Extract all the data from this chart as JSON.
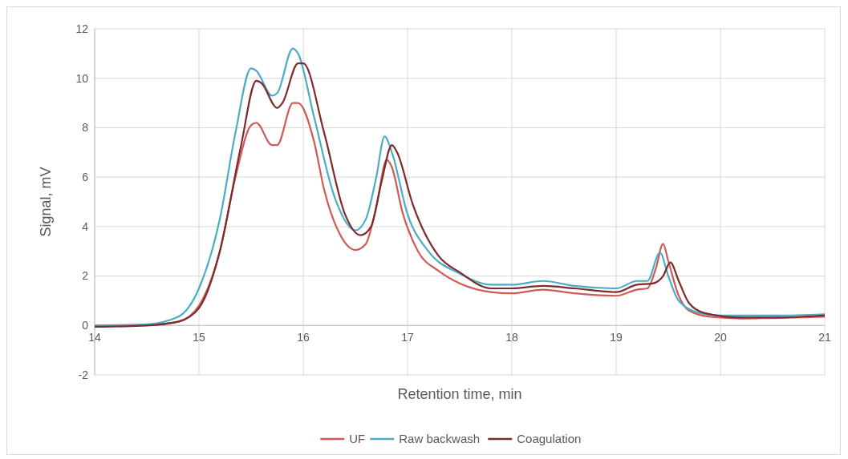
{
  "chart_data": {
    "type": "line",
    "xlabel": "Retention time, min",
    "ylabel": "Signal, mV",
    "xlim": [
      14,
      21
    ],
    "xticks": [
      14,
      15,
      16,
      17,
      18,
      19,
      20,
      21
    ],
    "ylim": [
      -2,
      12
    ],
    "yticks": [
      -2,
      0,
      2,
      4,
      6,
      8,
      10,
      12
    ],
    "grid": true,
    "legend": "bottom",
    "line_style": "solid",
    "series": [
      {
        "name": "UF",
        "color": "#d05a55",
        "x": [
          14,
          14.5,
          14.8,
          15,
          15.2,
          15.35,
          15.5,
          15.55,
          15.7,
          15.75,
          15.9,
          15.95,
          16.1,
          16.2,
          16.35,
          16.5,
          16.6,
          16.7,
          16.8,
          16.85,
          16.95,
          17.1,
          17.3,
          17.5,
          17.8,
          18,
          18.3,
          18.6,
          19,
          19.2,
          19.3,
          19.38,
          19.45,
          19.5,
          19.6,
          19.7,
          19.9,
          20.2,
          20.5,
          21
        ],
        "values": [
          0,
          0.02,
          0.15,
          0.8,
          3,
          6,
          8.1,
          8.2,
          7.3,
          7.3,
          9,
          9,
          7.5,
          5.5,
          3.7,
          3.05,
          3.3,
          4.8,
          6.7,
          6.4,
          4.6,
          3,
          2.2,
          1.7,
          1.35,
          1.3,
          1.45,
          1.3,
          1.2,
          1.45,
          1.5,
          2.3,
          3.3,
          2.6,
          1.2,
          0.6,
          0.35,
          0.28,
          0.3,
          0.35
        ]
      },
      {
        "name": "Raw backwash",
        "color": "#4bacc6",
        "x": [
          14,
          14.5,
          14.8,
          15,
          15.2,
          15.35,
          15.5,
          15.55,
          15.7,
          15.75,
          15.9,
          15.95,
          16.1,
          16.3,
          16.5,
          16.6,
          16.7,
          16.78,
          16.85,
          17,
          17.2,
          17.5,
          17.8,
          18,
          18.3,
          18.6,
          19,
          19.2,
          19.3,
          19.42,
          19.5,
          19.6,
          19.8,
          20,
          20.5,
          21
        ],
        "values": [
          0,
          0.05,
          0.35,
          1.5,
          4.3,
          7.8,
          10.4,
          10.3,
          9.3,
          9.4,
          11.2,
          11,
          8.5,
          5.2,
          3.85,
          4.3,
          6,
          7.65,
          7,
          4.5,
          3,
          2.1,
          1.65,
          1.65,
          1.8,
          1.6,
          1.5,
          1.8,
          1.8,
          2.95,
          2,
          1,
          0.5,
          0.4,
          0.4,
          0.45
        ]
      },
      {
        "name": "Coagulation",
        "color": "#7b2b2b",
        "x": [
          14,
          14.5,
          14.8,
          15,
          15.2,
          15.4,
          15.55,
          15.6,
          15.75,
          15.8,
          15.95,
          16,
          16.2,
          16.4,
          16.55,
          16.65,
          16.75,
          16.85,
          16.9,
          17.05,
          17.3,
          17.5,
          17.8,
          18,
          18.3,
          18.6,
          19,
          19.2,
          19.35,
          19.45,
          19.52,
          19.6,
          19.7,
          19.85,
          20.2,
          20.5,
          21
        ],
        "values": [
          -0.05,
          0,
          0.15,
          0.7,
          3,
          7.2,
          9.9,
          9.8,
          8.8,
          9,
          10.6,
          10.6,
          7.8,
          4.5,
          3.65,
          4,
          5.8,
          7.3,
          7,
          4.9,
          2.8,
          2.15,
          1.5,
          1.5,
          1.6,
          1.5,
          1.35,
          1.65,
          1.7,
          2,
          2.55,
          1.8,
          0.9,
          0.5,
          0.32,
          0.32,
          0.4
        ]
      }
    ]
  }
}
